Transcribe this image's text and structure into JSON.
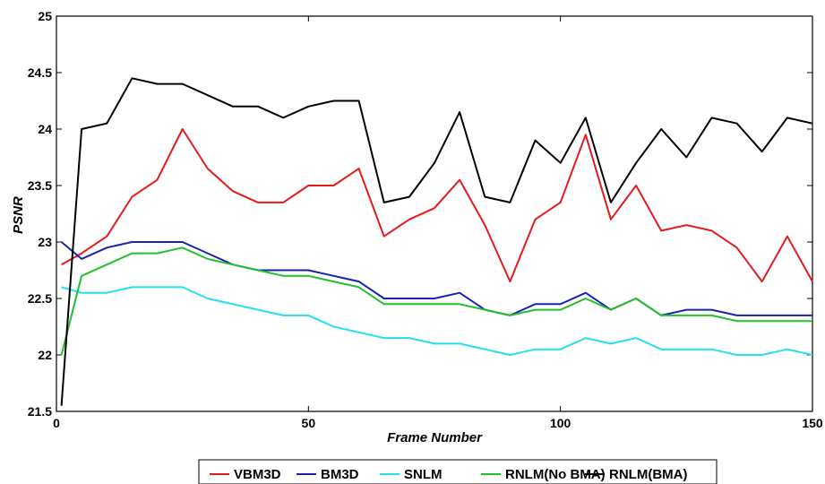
{
  "chart_data": {
    "type": "line",
    "xlabel": "Frame Number",
    "ylabel": "PSNR",
    "xlim": [
      0,
      150
    ],
    "ylim": [
      21.5,
      25
    ],
    "x_ticks": [
      0,
      50,
      100,
      150
    ],
    "y_ticks": [
      21.5,
      22,
      22.5,
      23,
      23.5,
      24,
      24.5,
      25
    ],
    "legend_position": "bottom-center",
    "grid": false,
    "x": [
      1,
      5,
      10,
      15,
      20,
      25,
      30,
      35,
      40,
      45,
      50,
      55,
      60,
      65,
      70,
      75,
      80,
      85,
      90,
      95,
      100,
      105,
      110,
      115,
      120,
      125,
      130,
      135,
      140,
      145,
      150
    ],
    "series": [
      {
        "name": "VBM3D",
        "color": "#e51a1a",
        "values": [
          22.8,
          22.9,
          23.05,
          23.4,
          23.55,
          24.0,
          23.65,
          23.45,
          23.35,
          23.35,
          23.5,
          23.5,
          23.65,
          23.05,
          23.2,
          23.3,
          23.55,
          23.15,
          22.65,
          23.2,
          23.35,
          23.95,
          23.2,
          23.5,
          23.1,
          23.15,
          23.1,
          22.95,
          22.65,
          23.05,
          22.65
        ]
      },
      {
        "name": "BM3D",
        "color": "#1a22b3",
        "values": [
          23.0,
          22.85,
          22.95,
          23.0,
          23.0,
          23.0,
          22.9,
          22.8,
          22.75,
          22.75,
          22.75,
          22.7,
          22.65,
          22.5,
          22.5,
          22.5,
          22.55,
          22.4,
          22.35,
          22.45,
          22.45,
          22.55,
          22.4,
          22.5,
          22.35,
          22.4,
          22.4,
          22.35,
          22.35,
          22.35,
          22.35
        ]
      },
      {
        "name": "SNLM",
        "color": "#22e0ee",
        "values": [
          22.6,
          22.55,
          22.55,
          22.6,
          22.6,
          22.6,
          22.5,
          22.45,
          22.4,
          22.35,
          22.35,
          22.25,
          22.2,
          22.15,
          22.15,
          22.1,
          22.1,
          22.05,
          22.0,
          22.05,
          22.05,
          22.15,
          22.1,
          22.15,
          22.05,
          22.05,
          22.05,
          22.0,
          22.0,
          22.05,
          22.0
        ]
      },
      {
        "name": "RNLM(No BMA)",
        "color": "#22c02a",
        "values": [
          22.0,
          22.7,
          22.8,
          22.9,
          22.9,
          22.95,
          22.85,
          22.8,
          22.75,
          22.7,
          22.7,
          22.65,
          22.6,
          22.45,
          22.45,
          22.45,
          22.45,
          22.4,
          22.35,
          22.4,
          22.4,
          22.5,
          22.4,
          22.5,
          22.35,
          22.35,
          22.35,
          22.3,
          22.3,
          22.3,
          22.3
        ]
      },
      {
        "name": "RNLM(BMA)",
        "color": "#000000",
        "values": [
          21.55,
          24.0,
          24.05,
          24.45,
          24.4,
          24.4,
          24.3,
          24.2,
          24.2,
          24.1,
          24.2,
          24.25,
          24.25,
          23.35,
          23.4,
          23.7,
          24.15,
          23.4,
          23.35,
          23.9,
          23.7,
          24.1,
          23.35,
          23.7,
          24.0,
          23.75,
          24.1,
          24.05,
          23.8,
          24.1,
          24.05
        ]
      }
    ]
  }
}
